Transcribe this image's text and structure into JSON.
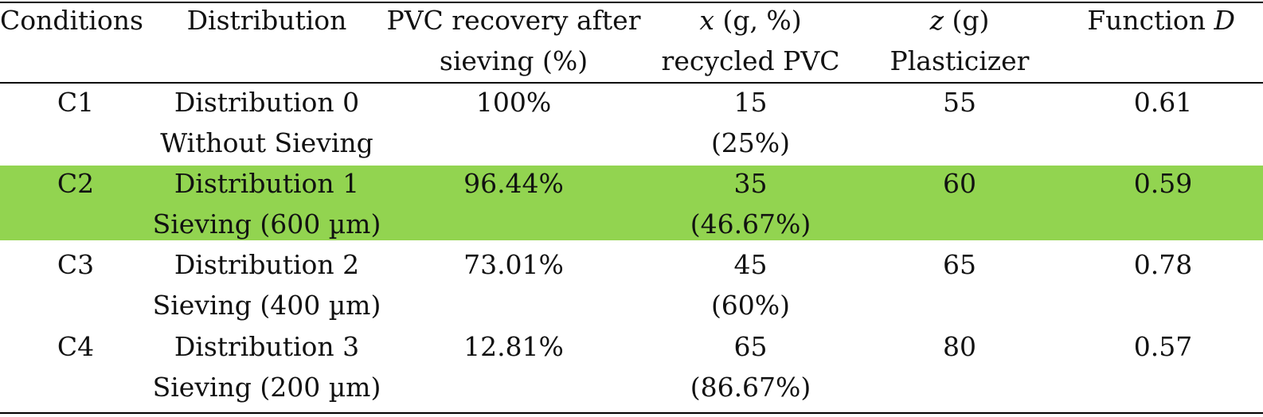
{
  "colors": {
    "highlight": "#92d450",
    "rule": "#000000"
  },
  "header": {
    "conditions": "Conditions",
    "distribution": "Distribution",
    "pvc_line1": "PVC recovery after",
    "pvc_line2": "sieving (%)",
    "x_symbol": "x",
    "x_rest": " (g, %)",
    "x_line2": "recycled PVC",
    "z_symbol": "z",
    "z_rest": " (g)",
    "z_line2": "Plasticizer",
    "func_text": "Function ",
    "func_symbol": "D"
  },
  "rows": [
    {
      "condition": "C1",
      "dist_line1": "Distribution 0",
      "dist_line2": "Without Sieving",
      "pvc": "100%",
      "x_value": "15",
      "x_percent": "(25%)",
      "z": "55",
      "d": "0.61"
    },
    {
      "condition": "C2",
      "dist_line1": "Distribution 1",
      "dist_line2": "Sieving (600 µm)",
      "pvc": "96.44%",
      "x_value": "35",
      "x_percent": "(46.67%)",
      "z": "60",
      "d": "0.59"
    },
    {
      "condition": "C3",
      "dist_line1": "Distribution 2",
      "dist_line2": "Sieving (400 µm)",
      "pvc": "73.01%",
      "x_value": "45",
      "x_percent": "(60%)",
      "z": "65",
      "d": "0.78"
    },
    {
      "condition": "C4",
      "dist_line1": "Distribution 3",
      "dist_line2": "Sieving (200 µm)",
      "pvc": "12.81%",
      "x_value": "65",
      "x_percent": "(86.67%)",
      "z": "80",
      "d": "0.57"
    }
  ]
}
